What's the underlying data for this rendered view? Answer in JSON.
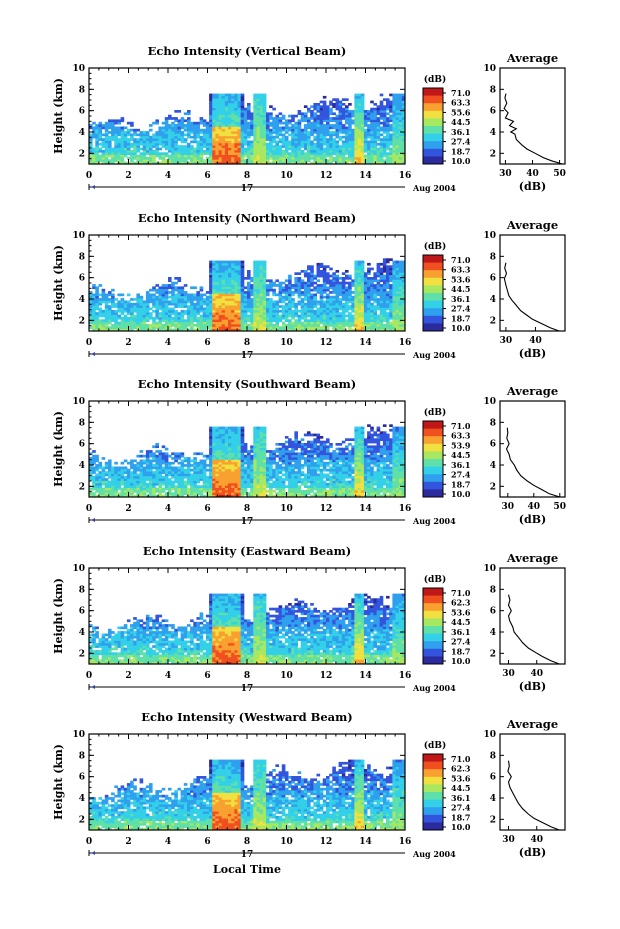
{
  "chart_data": [
    {
      "type": "heatmap",
      "title": "Echo Intensity (Vertical Beam)",
      "xlabel": "",
      "ylabel": "Height (km)",
      "x_ticks": [
        "0",
        "2",
        "4",
        "6",
        "8",
        "10",
        "12",
        "14",
        "16"
      ],
      "y_ticks": [
        "2",
        "4",
        "6",
        "8",
        "10"
      ],
      "xlim": [
        0,
        16
      ],
      "ylim": [
        1,
        10
      ],
      "day_label": "17",
      "date_label": "Aug 2004",
      "colorbar": {
        "label": "(dB)",
        "ticks": [
          "71.0",
          "63.3",
          "55.6",
          "44.5",
          "36.1",
          "27.4",
          "18.7",
          "10.0"
        ]
      },
      "average": {
        "title": "Average",
        "xlabel": "(dB)",
        "x_ticks": [
          "30",
          "40",
          "50"
        ],
        "xlim": [
          28,
          52
        ],
        "profile": [
          [
            51,
            1.0
          ],
          [
            47,
            1.3
          ],
          [
            44,
            1.6
          ],
          [
            41,
            2.0
          ],
          [
            38,
            2.4
          ],
          [
            36,
            2.8
          ],
          [
            34,
            3.3
          ],
          [
            33.5,
            3.8
          ],
          [
            32,
            4.0
          ],
          [
            34,
            4.3
          ],
          [
            31.5,
            4.6
          ],
          [
            33,
            5.0
          ],
          [
            30,
            5.3
          ],
          [
            31,
            5.8
          ],
          [
            29.5,
            6.2
          ],
          [
            30.5,
            6.7
          ],
          [
            29.8,
            7.2
          ],
          [
            30.2,
            7.6
          ]
        ]
      }
    },
    {
      "type": "heatmap",
      "title": "Echo Intensity (Northward Beam)",
      "xlabel": "",
      "ylabel": "Height (km)",
      "x_ticks": [
        "0",
        "2",
        "4",
        "6",
        "8",
        "10",
        "12",
        "14",
        "16"
      ],
      "y_ticks": [
        "2",
        "4",
        "6",
        "8",
        "10"
      ],
      "xlim": [
        0,
        16
      ],
      "ylim": [
        1,
        10
      ],
      "day_label": "17",
      "date_label": "Aug 2004",
      "colorbar": {
        "label": "(dB)",
        "ticks": [
          "71.0",
          "63.3",
          "53.6",
          "44.5",
          "36.1",
          "27.4",
          "18.7",
          "10.0"
        ]
      },
      "average": {
        "title": "Average",
        "xlabel": "(dB)",
        "x_ticks": [
          "30",
          "40"
        ],
        "xlim": [
          28,
          50
        ],
        "profile": [
          [
            48,
            1.0
          ],
          [
            45,
            1.3
          ],
          [
            42,
            1.7
          ],
          [
            39,
            2.1
          ],
          [
            37,
            2.5
          ],
          [
            35,
            2.9
          ],
          [
            33.5,
            3.4
          ],
          [
            32,
            3.9
          ],
          [
            31,
            4.3
          ],
          [
            30.5,
            4.8
          ],
          [
            30,
            5.3
          ],
          [
            29.5,
            5.9
          ],
          [
            30.2,
            6.4
          ],
          [
            29.6,
            6.9
          ],
          [
            30,
            7.4
          ]
        ]
      }
    },
    {
      "type": "heatmap",
      "title": "Echo Intensity (Southward Beam)",
      "xlabel": "",
      "ylabel": "Height (km)",
      "x_ticks": [
        "0",
        "2",
        "4",
        "6",
        "8",
        "10",
        "12",
        "14",
        "16"
      ],
      "y_ticks": [
        "2",
        "4",
        "6",
        "8",
        "10"
      ],
      "xlim": [
        0,
        16
      ],
      "ylim": [
        1,
        10
      ],
      "day_label": "17",
      "date_label": "Aug 2004",
      "colorbar": {
        "label": "(dB)",
        "ticks": [
          "71.0",
          "63.3",
          "53.9",
          "44.5",
          "36.1",
          "27.4",
          "18.7",
          "10.0"
        ]
      },
      "average": {
        "title": "Average",
        "xlabel": "(dB)",
        "x_ticks": [
          "30",
          "40",
          "50"
        ],
        "xlim": [
          27,
          52
        ],
        "profile": [
          [
            50,
            1.0
          ],
          [
            46,
            1.3
          ],
          [
            43,
            1.7
          ],
          [
            40,
            2.1
          ],
          [
            37.5,
            2.5
          ],
          [
            35,
            3.0
          ],
          [
            33.5,
            3.5
          ],
          [
            32.5,
            4.0
          ],
          [
            31,
            4.5
          ],
          [
            30.5,
            5.0
          ],
          [
            29.5,
            5.5
          ],
          [
            30.5,
            6.0
          ],
          [
            29.6,
            6.5
          ],
          [
            30,
            7.0
          ],
          [
            29.8,
            7.5
          ]
        ]
      }
    },
    {
      "type": "heatmap",
      "title": "Echo Intensity (Eastward Beam)",
      "xlabel": "",
      "ylabel": "Height (km)",
      "x_ticks": [
        "0",
        "2",
        "4",
        "6",
        "8",
        "10",
        "12",
        "14",
        "16"
      ],
      "y_ticks": [
        "2",
        "4",
        "6",
        "8",
        "10"
      ],
      "xlim": [
        0,
        16
      ],
      "ylim": [
        1,
        10
      ],
      "day_label": "17",
      "date_label": "Aug 2004",
      "colorbar": {
        "label": "(dB)",
        "ticks": [
          "71.0",
          "62.3",
          "53.6",
          "44.5",
          "36.1",
          "27.4",
          "18.7",
          "10.0"
        ]
      },
      "average": {
        "title": "Average",
        "xlabel": "(dB)",
        "x_ticks": [
          "30",
          "40"
        ],
        "xlim": [
          27,
          50
        ],
        "profile": [
          [
            48,
            1.0
          ],
          [
            45,
            1.3
          ],
          [
            42,
            1.7
          ],
          [
            39.5,
            2.1
          ],
          [
            37,
            2.5
          ],
          [
            35,
            3.0
          ],
          [
            33.5,
            3.5
          ],
          [
            32,
            4.0
          ],
          [
            31.5,
            4.5
          ],
          [
            30.5,
            5.0
          ],
          [
            30,
            5.5
          ],
          [
            31,
            6.0
          ],
          [
            30,
            6.5
          ],
          [
            30.5,
            7.0
          ],
          [
            30,
            7.5
          ]
        ]
      }
    },
    {
      "type": "heatmap",
      "title": "Echo Intensity (Westward Beam)",
      "xlabel": "Local Time",
      "ylabel": "Height (km)",
      "x_ticks": [
        "0",
        "2",
        "4",
        "6",
        "8",
        "10",
        "12",
        "14",
        "16"
      ],
      "y_ticks": [
        "2",
        "4",
        "6",
        "8",
        "10"
      ],
      "xlim": [
        0,
        16
      ],
      "ylim": [
        1,
        10
      ],
      "day_label": "17",
      "date_label": "Aug 2004",
      "colorbar": {
        "label": "(dB)",
        "ticks": [
          "71.0",
          "62.3",
          "53.6",
          "44.5",
          "36.1",
          "27.4",
          "18.7",
          "10.0"
        ]
      },
      "average": {
        "title": "Average",
        "xlabel": "(dB)",
        "x_ticks": [
          "30",
          "40"
        ],
        "xlim": [
          27,
          50
        ],
        "profile": [
          [
            48,
            1.0
          ],
          [
            45,
            1.3
          ],
          [
            42,
            1.7
          ],
          [
            39,
            2.1
          ],
          [
            37,
            2.5
          ],
          [
            35,
            3.0
          ],
          [
            33.5,
            3.5
          ],
          [
            32.5,
            4.0
          ],
          [
            31.5,
            4.5
          ],
          [
            30.5,
            5.0
          ],
          [
            30,
            5.5
          ],
          [
            31,
            6.0
          ],
          [
            29.8,
            6.5
          ],
          [
            30.3,
            7.0
          ],
          [
            30,
            7.5
          ]
        ]
      }
    }
  ],
  "colors": {
    "colormap": [
      "#2b2b9e",
      "#3355dd",
      "#2fa0ee",
      "#33d0e8",
      "#5fe0a8",
      "#a8e860",
      "#f0e040",
      "#f8a030",
      "#f05020",
      "#c01818"
    ]
  }
}
